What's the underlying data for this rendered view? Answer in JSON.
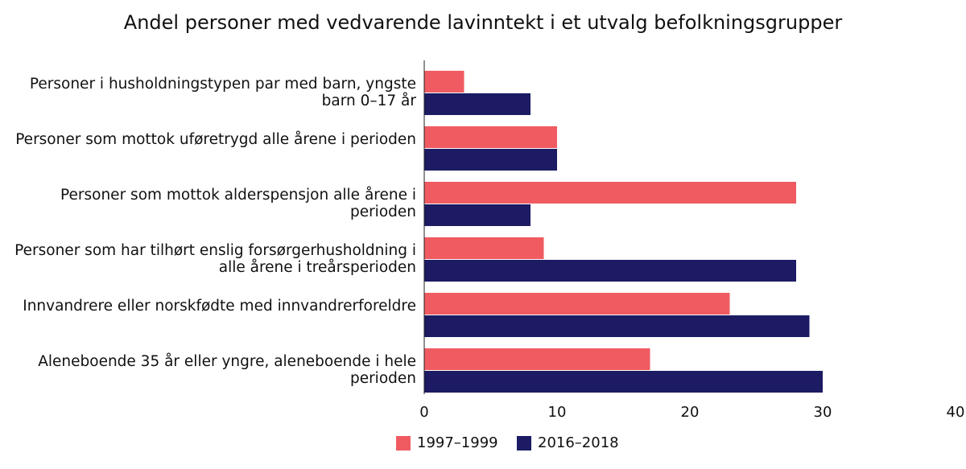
{
  "chart_data": {
    "type": "bar",
    "orientation": "horizontal",
    "title": "Andel personer med vedvarende lavinntekt i et utvalg befolkningsgrupper",
    "categories": [
      "Personer i husholdningstypen par med barn, yngste barn 0–17 år",
      "Personer som mottok uføretrygd alle årene i perioden",
      "Personer som mottok alderspensjon alle årene i perioden",
      "Personer som har tilhørt enslig forsørgerhusholdning i alle årene i treårsperioden",
      "Innvandrere eller norskfødte med innvandrerforeldre",
      "Aleneboende 35 år eller yngre, aleneboende i hele perioden"
    ],
    "series": [
      {
        "name": "1997–1999",
        "color": "#f05b61",
        "values": [
          3,
          10,
          28,
          9,
          23,
          17
        ]
      },
      {
        "name": "2016–2018",
        "color": "#1c1b63",
        "values": [
          8,
          10,
          8,
          28,
          29,
          30
        ]
      }
    ],
    "xlim": [
      0,
      40
    ],
    "xticks": [
      "0",
      "10",
      "20",
      "30",
      "40"
    ],
    "legend": "bottom"
  }
}
